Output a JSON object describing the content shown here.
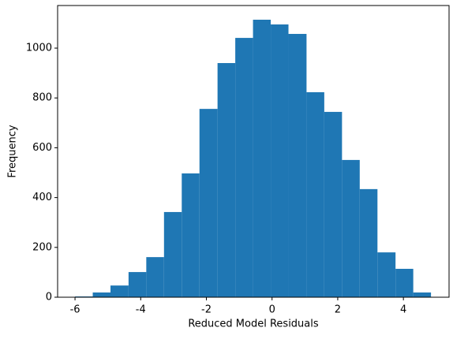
{
  "chart_data": {
    "type": "histogram",
    "xlabel": "Reduced Model Residuals",
    "ylabel": "Frequency",
    "bins": [
      -6.0,
      -5.46,
      -4.92,
      -4.37,
      -3.83,
      -3.29,
      -2.75,
      -2.21,
      -1.66,
      -1.12,
      -0.58,
      -0.04,
      0.5,
      1.05,
      1.59,
      2.13,
      2.67,
      3.21,
      3.76,
      4.3,
      4.84
    ],
    "values": [
      3,
      19,
      47,
      101,
      161,
      342,
      497,
      756,
      940,
      1041,
      1114,
      1095,
      1057,
      823,
      744,
      551,
      434,
      180,
      114,
      19
    ],
    "color": "#1f77b4",
    "xlim": [
      -6.53,
      5.39
    ],
    "xticks": [
      -6,
      -4,
      -2,
      0,
      2,
      4
    ],
    "ylim": [
      0,
      1171
    ],
    "yticks": [
      0,
      200,
      400,
      600,
      800,
      1000
    ]
  }
}
